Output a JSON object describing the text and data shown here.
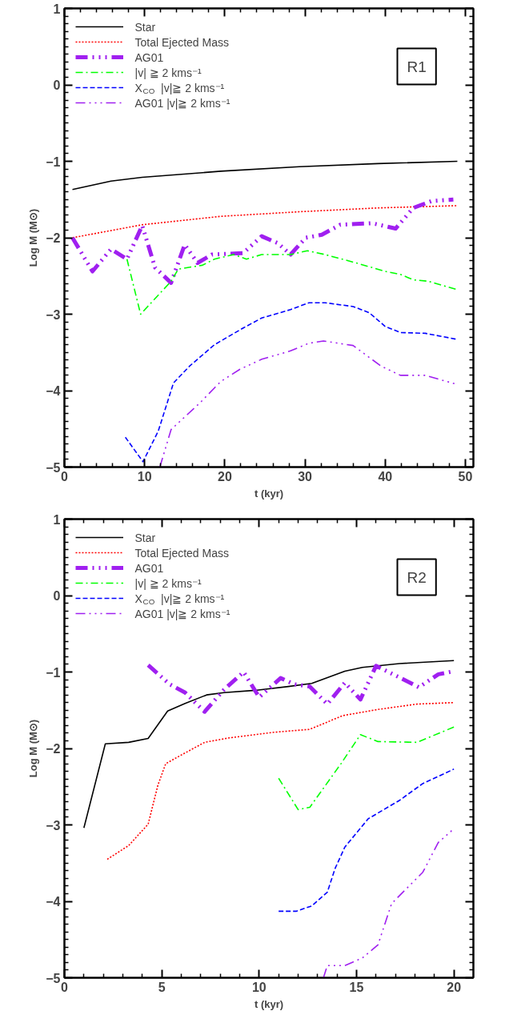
{
  "chart_data": [
    {
      "type": "line",
      "xlabel": "t (kyr)",
      "ylabel": "Log M (M⊙)",
      "xlim": [
        0,
        51
      ],
      "ylim": [
        -5,
        1
      ],
      "xticks": [
        0,
        10,
        20,
        30,
        40,
        50
      ],
      "yticks": [
        -5,
        -4,
        -3,
        -2,
        -1,
        0,
        1
      ],
      "grid": false,
      "legend": "top left",
      "annotations": [
        "R1"
      ],
      "series": [
        {
          "name": "Star",
          "color": "#000000",
          "line_style": "solid",
          "x": [
            1.0,
            5.8,
            9.7,
            19.5,
            29.3,
            39.1,
            49.0
          ],
          "values": [
            -1.37,
            -1.26,
            -1.21,
            -1.13,
            -1.07,
            -1.03,
            -1.0
          ]
        },
        {
          "name": "Total Ejected Mass",
          "color": "#ff0000",
          "line_style": "dotted",
          "x": [
            1.0,
            9.7,
            19.5,
            29.3,
            39.1,
            49.0
          ],
          "values": [
            -2.0,
            -1.83,
            -1.72,
            -1.66,
            -1.61,
            -1.58
          ]
        },
        {
          "name": "AG01",
          "color": "#a020f0",
          "line_style": "dashdotdotdot",
          "x": [
            1.0,
            3.5,
            5.8,
            7.8,
            9.7,
            11.3,
            13.3,
            15.0,
            16.6,
            18.4,
            22.3,
            24.6,
            26.6,
            28.2,
            30.1,
            32.1,
            34.4,
            38.4,
            41.3,
            43.5,
            45.8,
            48.5
          ],
          "values": [
            -2.0,
            -2.44,
            -2.15,
            -2.28,
            -1.84,
            -2.39,
            -2.59,
            -2.09,
            -2.33,
            -2.22,
            -2.2,
            -1.98,
            -2.07,
            -2.22,
            -2.0,
            -1.96,
            -1.83,
            -1.81,
            -1.88,
            -1.61,
            -1.52,
            -1.5
          ]
        },
        {
          "name": "|v| ≧ 2 kms⁻¹",
          "color": "#00ff00",
          "line_style": "dashdot",
          "x": [
            7.8,
            9.5,
            13.3,
            14.2,
            17.2,
            18.7,
            21.1,
            22.7,
            24.6,
            28.2,
            30.3,
            32.5,
            36.4,
            40.0,
            41.9,
            43.5,
            45.4,
            49.0
          ],
          "values": [
            -2.28,
            -3.0,
            -2.57,
            -2.41,
            -2.36,
            -2.28,
            -2.22,
            -2.28,
            -2.22,
            -2.22,
            -2.17,
            -2.22,
            -2.33,
            -2.44,
            -2.48,
            -2.55,
            -2.57,
            -2.68
          ]
        },
        {
          "name": "X$_{CO}$  |v|≧ 2 kms⁻¹",
          "color": "#0000ff",
          "line_style": "dashed",
          "x": [
            7.6,
            9.8,
            11.7,
            13.6,
            15.6,
            18.7,
            22.3,
            24.6,
            28.2,
            30.5,
            32.5,
            36.0,
            38.0,
            40.0,
            41.9,
            45.0,
            49.0
          ],
          "values": [
            -4.61,
            -4.93,
            -4.53,
            -3.9,
            -3.68,
            -3.4,
            -3.18,
            -3.05,
            -2.94,
            -2.85,
            -2.85,
            -2.9,
            -2.98,
            -3.16,
            -3.24,
            -3.25,
            -3.33
          ]
        },
        {
          "name": "AG01 |v|≧ 2 kms⁻¹",
          "color": "#a020f0",
          "line_style": "dashdotdotdot",
          "x": [
            11.9,
            13.3,
            16.9,
            19.5,
            21.9,
            24.6,
            28.2,
            30.5,
            32.3,
            36.0,
            39.5,
            41.9,
            45.0,
            49.0
          ],
          "values": [
            -5.0,
            -4.51,
            -4.16,
            -3.88,
            -3.72,
            -3.59,
            -3.48,
            -3.38,
            -3.35,
            -3.41,
            -3.68,
            -3.8,
            -3.8,
            -3.92
          ]
        }
      ]
    },
    {
      "type": "line",
      "xlabel": "t (kyr)",
      "ylabel": "Log M (M⊙)",
      "xlim": [
        0,
        21
      ],
      "ylim": [
        -5,
        1
      ],
      "xticks": [
        0,
        5,
        10,
        15,
        20
      ],
      "yticks": [
        -5,
        -4,
        -3,
        -2,
        -1,
        0,
        1
      ],
      "grid": false,
      "legend": "top left",
      "annotations": [
        "R2"
      ],
      "series": [
        {
          "name": "Star",
          "color": "#000000",
          "line_style": "solid",
          "x": [
            1.0,
            2.1,
            3.3,
            4.3,
            5.3,
            6.2,
            7.3,
            8.2,
            9.8,
            11.5,
            12.7,
            14.4,
            15.3,
            17.2,
            20.0
          ],
          "values": [
            -3.04,
            -1.94,
            -1.92,
            -1.87,
            -1.51,
            -1.41,
            -1.3,
            -1.27,
            -1.24,
            -1.19,
            -1.15,
            -0.99,
            -0.94,
            -0.89,
            -0.85
          ]
        },
        {
          "name": "Total Ejected Mass",
          "color": "#ff0000",
          "line_style": "dotted",
          "x": [
            2.2,
            3.3,
            4.3,
            4.8,
            5.2,
            5.9,
            7.2,
            8.5,
            10.7,
            12.6,
            14.3,
            16.1,
            18.1,
            20.0
          ],
          "values": [
            -3.45,
            -3.27,
            -2.99,
            -2.48,
            -2.2,
            -2.1,
            -1.92,
            -1.86,
            -1.79,
            -1.75,
            -1.57,
            -1.49,
            -1.42,
            -1.4
          ]
        },
        {
          "name": "AG01",
          "color": "#a020f0",
          "line_style": "dashdotdotdot",
          "x": [
            4.3,
            5.4,
            6.2,
            7.2,
            8.2,
            9.2,
            10.0,
            11.1,
            11.8,
            12.6,
            13.5,
            14.4,
            15.2,
            16.0,
            17.2,
            18.2,
            19.2,
            20.0
          ],
          "values": [
            -0.91,
            -1.16,
            -1.27,
            -1.52,
            -1.23,
            -1.0,
            -1.33,
            -1.08,
            -1.16,
            -1.19,
            -1.42,
            -1.14,
            -1.36,
            -0.92,
            -1.07,
            -1.2,
            -1.03,
            -0.99
          ]
        },
        {
          "name": "|v| ≧ 2 kms⁻¹",
          "color": "#00ff00",
          "line_style": "dashdot",
          "x": [
            11.0,
            12.0,
            12.6,
            14.2,
            15.2,
            16.1,
            18.1,
            20.0
          ],
          "values": [
            -2.39,
            -2.8,
            -2.77,
            -2.2,
            -1.82,
            -1.91,
            -1.92,
            -1.72
          ]
        },
        {
          "name": "X$_{CO}$  |v|≧ 2 kms⁻¹",
          "color": "#0000ff",
          "line_style": "dashed",
          "x": [
            11.0,
            11.9,
            12.7,
            13.5,
            13.9,
            14.4,
            15.6,
            17.2,
            18.4,
            20.0
          ],
          "values": [
            -4.13,
            -4.13,
            -4.06,
            -3.88,
            -3.57,
            -3.29,
            -2.92,
            -2.68,
            -2.46,
            -2.27
          ]
        },
        {
          "name": "AG01 |v|≧ 2 kms⁻¹",
          "color": "#a020f0",
          "line_style": "dashdotdotdot",
          "x": [
            13.3,
            13.5,
            14.4,
            15.3,
            16.1,
            16.8,
            18.4,
            19.2,
            20.0
          ],
          "values": [
            -5.0,
            -4.84,
            -4.84,
            -4.74,
            -4.57,
            -4.03,
            -3.62,
            -3.23,
            -3.05
          ]
        }
      ]
    }
  ]
}
